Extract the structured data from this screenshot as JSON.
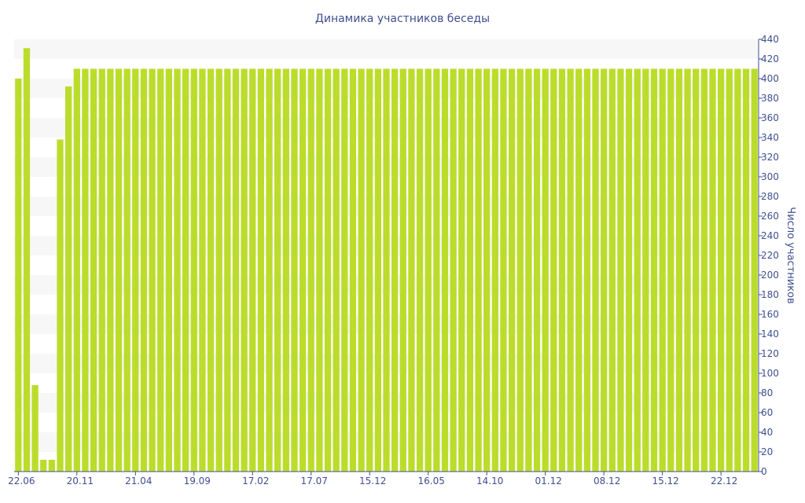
{
  "chart_data": {
    "type": "bar",
    "title": "Динамика участников беседы",
    "xlabel": "",
    "ylabel": "Число участников",
    "ylim": [
      0,
      440
    ],
    "y_ticks": [
      0,
      20,
      40,
      60,
      80,
      100,
      120,
      140,
      160,
      180,
      200,
      220,
      240,
      260,
      280,
      300,
      320,
      340,
      360,
      380,
      400,
      420,
      440
    ],
    "x_tick_labels": [
      {
        "label": "22.06",
        "index": 0
      },
      {
        "label": "20.11",
        "index": 7
      },
      {
        "label": "21.04",
        "index": 14
      },
      {
        "label": "19.09",
        "index": 21
      },
      {
        "label": "17.02",
        "index": 28
      },
      {
        "label": "17.07",
        "index": 35
      },
      {
        "label": "15.12",
        "index": 42
      },
      {
        "label": "16.05",
        "index": 49
      },
      {
        "label": "14.10",
        "index": 56
      },
      {
        "label": "01.12",
        "index": 63
      },
      {
        "label": "08.12",
        "index": 70
      },
      {
        "label": "15.12",
        "index": 77
      },
      {
        "label": "22.12",
        "index": 84
      }
    ],
    "y_axis_position": "right",
    "grid": "alternating horizontal bands",
    "legend": "none",
    "bar_color": "#bcdc2c",
    "band_color": "#f7f7f7",
    "values": [
      400,
      431,
      88,
      12,
      12,
      338,
      392,
      410,
      410,
      410,
      410,
      410,
      410,
      410,
      410,
      410,
      410,
      410,
      410,
      410,
      410,
      410,
      410,
      410,
      410,
      410,
      410,
      410,
      410,
      410,
      410,
      410,
      410,
      410,
      410,
      410,
      410,
      410,
      410,
      410,
      410,
      410,
      410,
      410,
      410,
      410,
      410,
      410,
      410,
      410,
      410,
      410,
      410,
      410,
      410,
      410,
      410,
      410,
      410,
      410,
      410,
      410,
      410,
      410,
      410,
      410,
      410,
      410,
      410,
      410,
      410,
      410,
      410,
      410,
      410,
      410,
      410,
      410,
      410,
      410,
      410,
      410,
      410,
      410,
      410,
      410,
      410,
      410,
      410
    ]
  },
  "colors": {
    "text": "#3e4f8f",
    "axis": "#3e4f8f"
  }
}
